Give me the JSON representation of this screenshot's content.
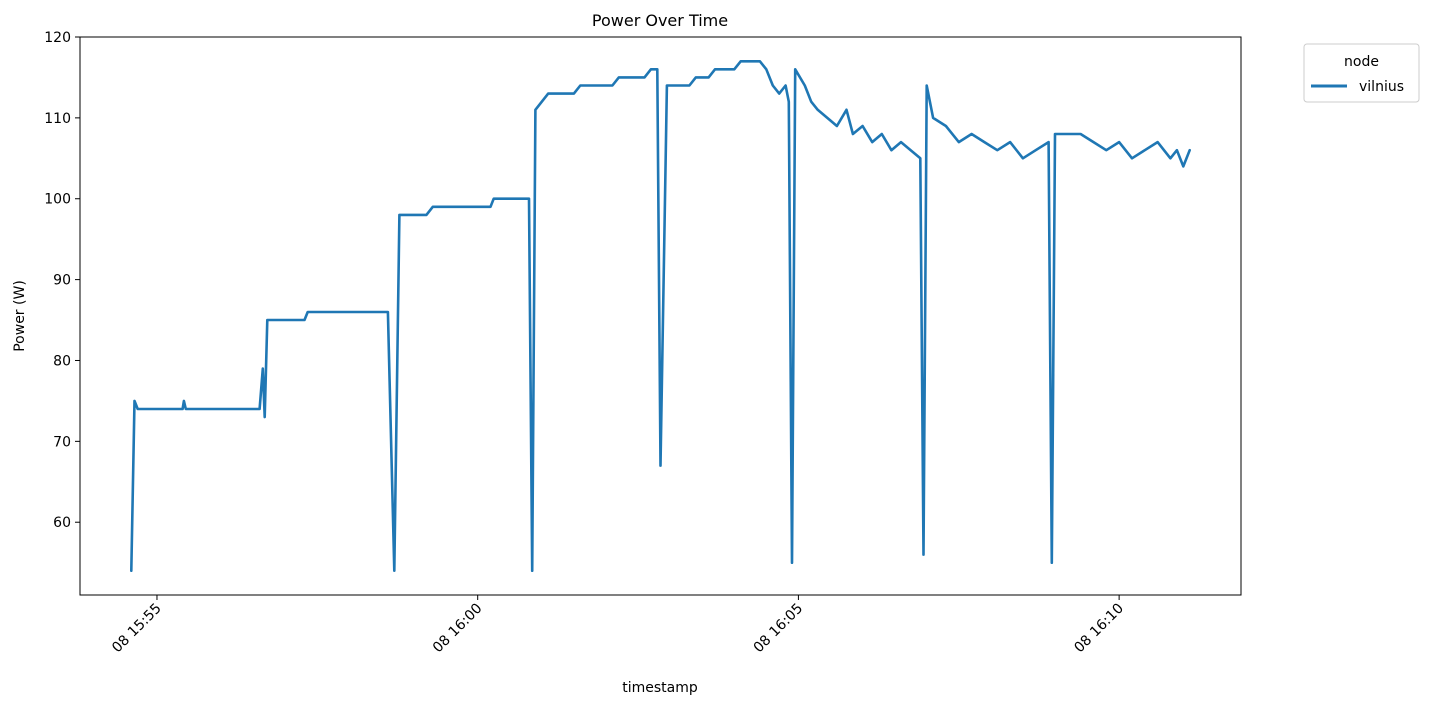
{
  "chart_data": {
    "type": "line",
    "title": "Power Over Time",
    "xlabel": "timestamp",
    "ylabel": "Power (W)",
    "x_tick_labels": [
      "08 15:55",
      "08 16:00",
      "08 16:05",
      "08 16:10"
    ],
    "x_tick_minutes": [
      55,
      60,
      65,
      70
    ],
    "y_ticks": [
      60,
      70,
      80,
      90,
      100,
      110,
      120
    ],
    "ylim": [
      51,
      120
    ],
    "xlim_minutes": [
      53.8,
      71.9
    ],
    "grid": false,
    "legend": {
      "title": "node",
      "placement": "outside-top-right",
      "entries": [
        "vilnius"
      ]
    },
    "series": [
      {
        "name": "vilnius",
        "color": "#1f77b4",
        "points": [
          {
            "x": 54.6,
            "y": 54
          },
          {
            "x": 54.65,
            "y": 75
          },
          {
            "x": 54.7,
            "y": 74
          },
          {
            "x": 55.4,
            "y": 74
          },
          {
            "x": 55.42,
            "y": 75
          },
          {
            "x": 55.45,
            "y": 74
          },
          {
            "x": 56.6,
            "y": 74
          },
          {
            "x": 56.65,
            "y": 79
          },
          {
            "x": 56.68,
            "y": 73
          },
          {
            "x": 56.72,
            "y": 85
          },
          {
            "x": 57.3,
            "y": 85
          },
          {
            "x": 57.35,
            "y": 86
          },
          {
            "x": 58.6,
            "y": 86
          },
          {
            "x": 58.7,
            "y": 54
          },
          {
            "x": 58.78,
            "y": 98
          },
          {
            "x": 59.2,
            "y": 98
          },
          {
            "x": 59.3,
            "y": 99
          },
          {
            "x": 60.2,
            "y": 99
          },
          {
            "x": 60.25,
            "y": 100
          },
          {
            "x": 60.8,
            "y": 100
          },
          {
            "x": 60.85,
            "y": 54
          },
          {
            "x": 60.9,
            "y": 111
          },
          {
            "x": 61.0,
            "y": 112
          },
          {
            "x": 61.1,
            "y": 113
          },
          {
            "x": 61.5,
            "y": 113
          },
          {
            "x": 61.6,
            "y": 114
          },
          {
            "x": 62.1,
            "y": 114
          },
          {
            "x": 62.2,
            "y": 115
          },
          {
            "x": 62.6,
            "y": 115
          },
          {
            "x": 62.7,
            "y": 116
          },
          {
            "x": 62.8,
            "y": 116
          },
          {
            "x": 62.85,
            "y": 67
          },
          {
            "x": 62.95,
            "y": 114
          },
          {
            "x": 63.3,
            "y": 114
          },
          {
            "x": 63.4,
            "y": 115
          },
          {
            "x": 63.6,
            "y": 115
          },
          {
            "x": 63.7,
            "y": 116
          },
          {
            "x": 64.0,
            "y": 116
          },
          {
            "x": 64.1,
            "y": 117
          },
          {
            "x": 64.4,
            "y": 117
          },
          {
            "x": 64.5,
            "y": 116
          },
          {
            "x": 64.6,
            "y": 114
          },
          {
            "x": 64.7,
            "y": 113
          },
          {
            "x": 64.8,
            "y": 114
          },
          {
            "x": 64.85,
            "y": 112
          },
          {
            "x": 64.9,
            "y": 55
          },
          {
            "x": 64.95,
            "y": 116
          },
          {
            "x": 65.1,
            "y": 114
          },
          {
            "x": 65.2,
            "y": 112
          },
          {
            "x": 65.3,
            "y": 111
          },
          {
            "x": 65.45,
            "y": 110
          },
          {
            "x": 65.6,
            "y": 109
          },
          {
            "x": 65.75,
            "y": 111
          },
          {
            "x": 65.85,
            "y": 108
          },
          {
            "x": 66.0,
            "y": 109
          },
          {
            "x": 66.15,
            "y": 107
          },
          {
            "x": 66.3,
            "y": 108
          },
          {
            "x": 66.45,
            "y": 106
          },
          {
            "x": 66.6,
            "y": 107
          },
          {
            "x": 66.75,
            "y": 106
          },
          {
            "x": 66.9,
            "y": 105
          },
          {
            "x": 66.95,
            "y": 56
          },
          {
            "x": 67.0,
            "y": 114
          },
          {
            "x": 67.1,
            "y": 110
          },
          {
            "x": 67.3,
            "y": 109
          },
          {
            "x": 67.5,
            "y": 107
          },
          {
            "x": 67.7,
            "y": 108
          },
          {
            "x": 67.9,
            "y": 107
          },
          {
            "x": 68.1,
            "y": 106
          },
          {
            "x": 68.3,
            "y": 107
          },
          {
            "x": 68.5,
            "y": 105
          },
          {
            "x": 68.7,
            "y": 106
          },
          {
            "x": 68.9,
            "y": 107
          },
          {
            "x": 68.95,
            "y": 55
          },
          {
            "x": 69.0,
            "y": 108
          },
          {
            "x": 69.4,
            "y": 108
          },
          {
            "x": 69.6,
            "y": 107
          },
          {
            "x": 69.8,
            "y": 106
          },
          {
            "x": 70.0,
            "y": 107
          },
          {
            "x": 70.2,
            "y": 105
          },
          {
            "x": 70.4,
            "y": 106
          },
          {
            "x": 70.6,
            "y": 107
          },
          {
            "x": 70.8,
            "y": 105
          },
          {
            "x": 70.9,
            "y": 106
          },
          {
            "x": 71.0,
            "y": 104
          },
          {
            "x": 71.1,
            "y": 106
          }
        ]
      }
    ]
  }
}
